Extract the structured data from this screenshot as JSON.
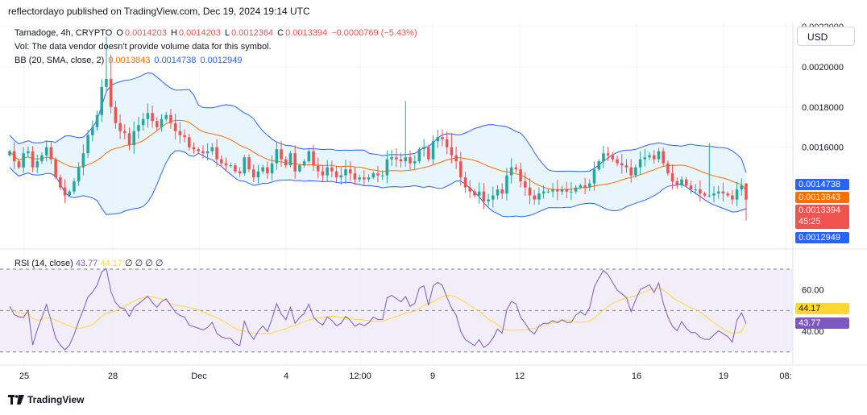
{
  "header": {
    "publish_line": "reflectordayo published on TradingView.com, Dec 19, 2024 19:14 UTC"
  },
  "legend": {
    "symbol_line": "Tamadoge, 4h, CRYPTO",
    "o_label": "O",
    "o_value": "0.0014203",
    "h_label": "H",
    "h_value": "0.0014203",
    "l_label": "L",
    "l_value": "0.0012364",
    "c_label": "C",
    "c_value": "0.0013394",
    "change": "−0.0000769 (−5.43%)",
    "vol_line": "Vol: The data vendor doesn't provide volume data for this symbol.",
    "bb_label": "BB (20, SMA, close, 2)",
    "bb_basis": "0.0013843",
    "bb_upper": "0.0014738",
    "bb_lower": "0.0012949"
  },
  "rsi_legend": {
    "label": "RSI (14, close)",
    "rsi": "43.77",
    "ma": "44.17",
    "zeros": "∅ ∅ ∅ ∅"
  },
  "currency_button": "USD",
  "price_tags": {
    "upper": "0.0014738",
    "basis": "0.0013843",
    "close": "0.0013394",
    "countdown": "45:25",
    "lower": "0.0012949",
    "rsi_ma": "44.17",
    "rsi": "43.77"
  },
  "footer": {
    "brand": "TradingView"
  },
  "colors": {
    "up": "#26a69a",
    "down": "#ef5350",
    "bb_band": "#2962ff",
    "bb_basis": "#ff6d00",
    "bb_fill": "#e3f2fd",
    "rsi": "#7e57c2",
    "rsi_ma": "#fdd835",
    "rsi_fill": "#ede7f6"
  },
  "chart_data": [
    {
      "type": "candlestick",
      "title": "Tamadoge, 4h, CRYPTO",
      "y_ticks": [
        "0.0016000",
        "0.0018000",
        "0.0020000",
        "0.0022000"
      ],
      "y_range": [
        0.00113,
        0.00222
      ],
      "x_tick_labels": [
        "25",
        "28",
        "Dec",
        "4",
        "12:00",
        "9",
        "12",
        "16",
        "19",
        "08:"
      ],
      "close_series": [
        0.00158,
        0.00153,
        0.0015,
        0.00157,
        0.00158,
        0.0015,
        0.00153,
        0.00156,
        0.0016,
        0.00154,
        0.00145,
        0.0014,
        0.00136,
        0.00138,
        0.00143,
        0.0015,
        0.00157,
        0.00166,
        0.0017,
        0.00176,
        0.0019,
        0.00194,
        0.0018,
        0.00172,
        0.00168,
        0.00167,
        0.00161,
        0.00168,
        0.00171,
        0.00174,
        0.00177,
        0.00173,
        0.0017,
        0.00174,
        0.00176,
        0.00172,
        0.00168,
        0.00166,
        0.00165,
        0.0016,
        0.00159,
        0.00158,
        0.00157,
        0.00158,
        0.0016,
        0.00154,
        0.00152,
        0.00151,
        0.00151,
        0.00148,
        0.00147,
        0.00155,
        0.00149,
        0.00145,
        0.00148,
        0.0015,
        0.00147,
        0.00152,
        0.00159,
        0.00154,
        0.00151,
        0.00157,
        0.00148,
        0.00151,
        0.00153,
        0.00158,
        0.00151,
        0.00148,
        0.00146,
        0.0015,
        0.00148,
        0.00145,
        0.00146,
        0.00149,
        0.00147,
        0.00144,
        0.00145,
        0.00144,
        0.00145,
        0.00147,
        0.00146,
        0.00146,
        0.00154,
        0.00155,
        0.00154,
        0.00153,
        0.00155,
        0.00152,
        0.00153,
        0.00159,
        0.0016,
        0.00154,
        0.00163,
        0.00165,
        0.00164,
        0.0016,
        0.00156,
        0.00153,
        0.00145,
        0.0014,
        0.00138,
        0.00136,
        0.00138,
        0.00133,
        0.00134,
        0.00136,
        0.00139,
        0.00137,
        0.00146,
        0.0015,
        0.00149,
        0.00143,
        0.0014,
        0.00136,
        0.00134,
        0.00137,
        0.00138,
        0.00138,
        0.00139,
        0.00138,
        0.00139,
        0.00138,
        0.00138,
        0.0014,
        0.00141,
        0.0014,
        0.00142,
        0.00149,
        0.00153,
        0.00157,
        0.00156,
        0.00154,
        0.00152,
        0.00151,
        0.0015,
        0.00146,
        0.0015,
        0.00154,
        0.00155,
        0.00156,
        0.00154,
        0.00158,
        0.00152,
        0.00147,
        0.00143,
        0.00141,
        0.00144,
        0.00141,
        0.00139,
        0.00139,
        0.00137,
        0.00136,
        0.00136,
        0.00137,
        0.00138,
        0.00137,
        0.00136,
        0.00134,
        0.00139,
        0.00141,
        0.00134
      ],
      "last_values": {
        "open": 0.0014203,
        "high": 0.0014203,
        "low": 0.0012364,
        "close": 0.0013394,
        "change": -7.69e-05,
        "change_pct": -5.43
      },
      "bollinger": {
        "length": 20,
        "basis": 0.0013843,
        "upper": 0.0014738,
        "lower": 0.0012949
      }
    },
    {
      "type": "line",
      "title": "RSI (14, close)",
      "y_ticks": [
        "40.00",
        "60.00"
      ],
      "y_range": [
        26,
        77
      ],
      "levels": [
        30,
        50,
        70
      ],
      "rsi_last": 43.77,
      "rsi_ma_last": 44.17
    }
  ]
}
